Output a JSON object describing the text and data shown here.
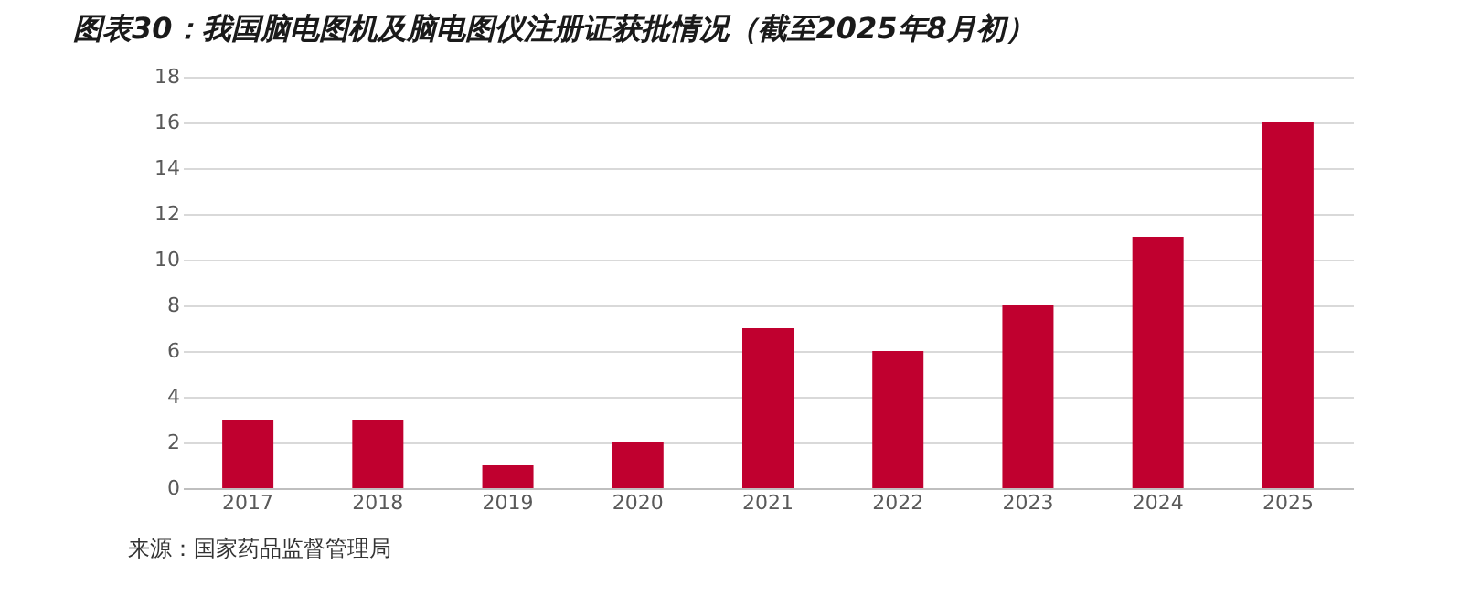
{
  "chart_data": {
    "type": "bar",
    "title": "图表30：我国脑电图机及脑电图仪注册证获批情况（截至2025年8月初）",
    "categories": [
      "2017",
      "2018",
      "2019",
      "2020",
      "2021",
      "2022",
      "2023",
      "2024",
      "2025"
    ],
    "values": [
      3,
      3,
      1,
      2,
      7,
      6,
      8,
      11,
      16
    ],
    "color": "#c0002f",
    "ylim": [
      0,
      18
    ],
    "yticks": [
      0,
      2,
      4,
      6,
      8,
      10,
      12,
      14,
      16,
      18
    ],
    "grid": "y",
    "annotations": [
      "来源：国家药品监督管理局"
    ]
  }
}
